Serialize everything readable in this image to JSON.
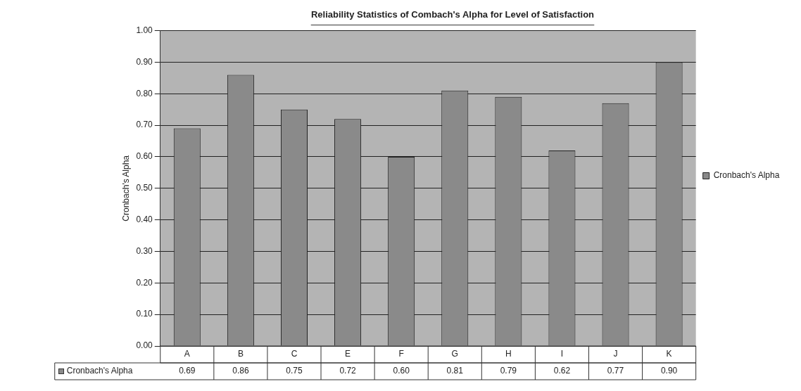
{
  "chart_data": {
    "type": "bar",
    "title": "Reliability Statistics of Combach's Alpha for Level of Satisfaction",
    "ylabel": "Cronbach's Alpha",
    "categories": [
      "A",
      "B",
      "C",
      "E",
      "F",
      "G",
      "H",
      "I",
      "J",
      "K"
    ],
    "series": [
      {
        "name": "Cronbach's Alpha",
        "color": "#8a8a8a",
        "values": [
          0.69,
          0.86,
          0.75,
          0.72,
          0.6,
          0.81,
          0.79,
          0.62,
          0.77,
          0.9
        ],
        "value_labels": [
          "0.69",
          "0.86",
          "0.75",
          "0.72",
          "0.60",
          "0.81",
          "0.79",
          "0.62",
          "0.77",
          "0.90"
        ]
      }
    ],
    "ylim": [
      0,
      1
    ],
    "yticks": [
      {
        "value": 0,
        "label": "0.00"
      },
      {
        "value": 0.1,
        "label": "0.10"
      },
      {
        "value": 0.2,
        "label": "0.20"
      },
      {
        "value": 0.3,
        "label": "0.30"
      },
      {
        "value": 0.4,
        "label": "0.40"
      },
      {
        "value": 0.5,
        "label": "0.50"
      },
      {
        "value": 0.6,
        "label": "0.60"
      },
      {
        "value": 0.7,
        "label": "0.70"
      },
      {
        "value": 0.8,
        "label": "0.80"
      },
      {
        "value": 0.9,
        "label": "0.90"
      },
      {
        "value": 1,
        "label": "1.00"
      }
    ],
    "grid": "y",
    "legend": "right"
  }
}
